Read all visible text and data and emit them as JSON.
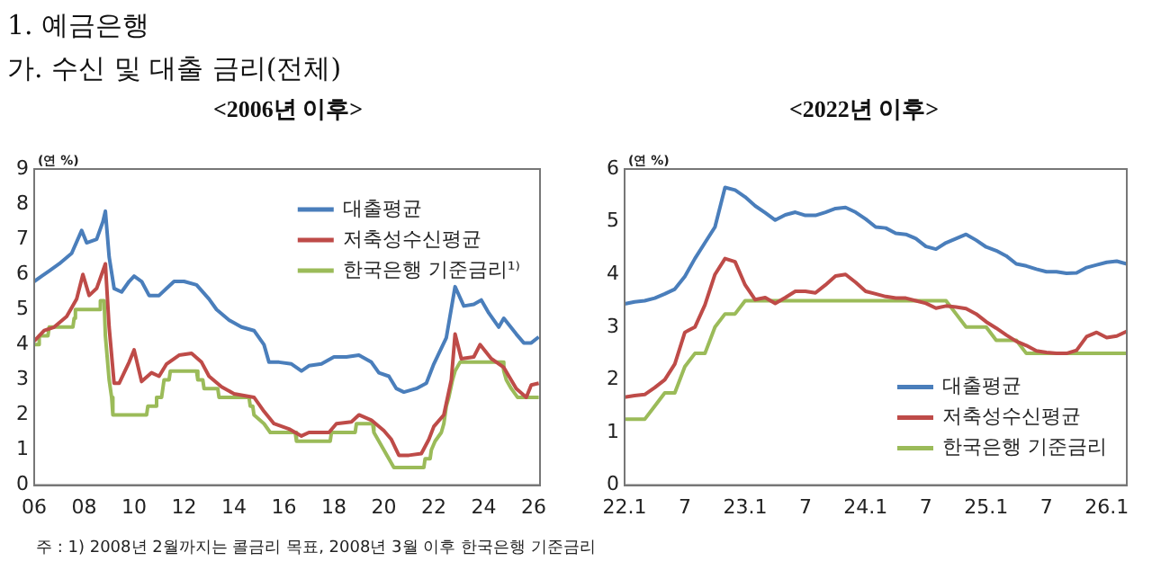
{
  "chart_data": [
    {
      "type": "line",
      "title": "<2006년 이후>",
      "ylabel": "(연 %)",
      "annotations": [
        "1. 예금은행",
        "가. 수신 및 대출 금리(전체)",
        "주 : 1) 2008년 2월까지는 콜금리 목표, 2008년 3월 이후 한국은행 기준금리"
      ],
      "legend": "top right",
      "xlim": [
        2006,
        2026.25
      ],
      "xticks": [
        {
          "value": 2006,
          "label": "06"
        },
        {
          "value": 2008,
          "label": "08"
        },
        {
          "value": 2010,
          "label": "10"
        },
        {
          "value": 2012,
          "label": "12"
        },
        {
          "value": 2014,
          "label": "14"
        },
        {
          "value": 2016,
          "label": "16"
        },
        {
          "value": 2018,
          "label": "18"
        },
        {
          "value": 2020,
          "label": "20"
        },
        {
          "value": 2022,
          "label": "22"
        },
        {
          "value": 2024,
          "label": "24"
        },
        {
          "value": 2026,
          "label": "26"
        }
      ],
      "ylim": [
        0,
        9
      ],
      "yticks": [
        0,
        1,
        2,
        3,
        4,
        5,
        6,
        7,
        8,
        9
      ],
      "series": [
        {
          "name": "대출평균",
          "color": "#4a7ebb",
          "x": [
            2006.0,
            2006.3,
            2006.6,
            2007.0,
            2007.5,
            2007.9,
            2008.1,
            2008.5,
            2008.75,
            2008.85,
            2009.0,
            2009.2,
            2009.5,
            2009.8,
            2010.0,
            2010.3,
            2010.6,
            2011.0,
            2011.3,
            2011.6,
            2012.0,
            2012.5,
            2013.0,
            2013.3,
            2013.8,
            2014.3,
            2014.8,
            2015.2,
            2015.4,
            2015.8,
            2016.3,
            2016.7,
            2017.0,
            2017.5,
            2018.0,
            2018.5,
            2019.0,
            2019.5,
            2019.8,
            2020.2,
            2020.5,
            2020.8,
            2021.3,
            2021.7,
            2022.0,
            2022.5,
            2022.85,
            2023.2,
            2023.6,
            2023.9,
            2024.2,
            2024.6,
            2024.8,
            2025.3,
            2025.6,
            2025.9,
            2026.2
          ],
          "values": [
            5.8,
            5.95,
            6.1,
            6.3,
            6.6,
            7.25,
            6.9,
            7.0,
            7.5,
            7.8,
            6.5,
            5.6,
            5.5,
            5.8,
            5.95,
            5.8,
            5.4,
            5.4,
            5.6,
            5.8,
            5.8,
            5.7,
            5.3,
            5.0,
            4.7,
            4.5,
            4.4,
            4.0,
            3.5,
            3.5,
            3.45,
            3.25,
            3.4,
            3.45,
            3.65,
            3.65,
            3.7,
            3.5,
            3.2,
            3.1,
            2.75,
            2.65,
            2.75,
            2.9,
            3.45,
            4.2,
            5.65,
            5.1,
            5.15,
            5.27,
            4.9,
            4.5,
            4.75,
            4.3,
            4.05,
            4.05,
            4.22
          ]
        },
        {
          "name": "저축성수신평균",
          "color": "#be4b48",
          "x": [
            2006.0,
            2006.4,
            2006.8,
            2007.3,
            2007.7,
            2007.95,
            2008.2,
            2008.5,
            2008.85,
            2009.0,
            2009.2,
            2009.4,
            2009.8,
            2010.0,
            2010.3,
            2010.7,
            2011.0,
            2011.3,
            2011.8,
            2012.3,
            2012.7,
            2013.0,
            2013.5,
            2014.0,
            2014.8,
            2015.2,
            2015.6,
            2016.2,
            2016.7,
            2017.0,
            2017.8,
            2018.1,
            2018.7,
            2019.0,
            2019.5,
            2020.0,
            2020.3,
            2020.6,
            2021.0,
            2021.5,
            2021.8,
            2022.0,
            2022.4,
            2022.7,
            2022.85,
            2023.1,
            2023.6,
            2023.85,
            2024.3,
            2024.8,
            2025.3,
            2025.7,
            2025.9,
            2026.2
          ],
          "values": [
            4.1,
            4.4,
            4.5,
            4.8,
            5.3,
            6.0,
            5.4,
            5.6,
            6.3,
            4.5,
            2.9,
            2.9,
            3.5,
            3.85,
            2.95,
            3.2,
            3.1,
            3.45,
            3.7,
            3.75,
            3.5,
            3.1,
            2.8,
            2.6,
            2.5,
            2.1,
            1.75,
            1.6,
            1.4,
            1.5,
            1.5,
            1.75,
            1.8,
            2.0,
            1.85,
            1.55,
            1.3,
            0.85,
            0.85,
            0.9,
            1.3,
            1.67,
            2.0,
            3.0,
            4.3,
            3.6,
            3.65,
            4.0,
            3.6,
            3.35,
            2.75,
            2.5,
            2.85,
            2.9
          ]
        },
        {
          "name": "한국은행 기준금리¹⁾",
          "color": "#9bbb59",
          "x": [
            2006.0,
            2006.15,
            2006.2,
            2006.55,
            2006.6,
            2007.55,
            2007.6,
            2007.65,
            2008.6,
            2008.65,
            2008.8,
            2008.85,
            2009.0,
            2009.1,
            2009.15,
            2010.5,
            2010.55,
            2010.85,
            2010.9,
            2011.1,
            2011.2,
            2011.4,
            2011.45,
            2012.5,
            2012.55,
            2012.75,
            2012.8,
            2013.35,
            2013.4,
            2014.6,
            2014.65,
            2014.75,
            2014.8,
            2015.2,
            2015.45,
            2016.45,
            2016.5,
            2017.85,
            2017.9,
            2018.85,
            2018.9,
            2019.55,
            2019.6,
            2019.8,
            2020.2,
            2020.4,
            2021.6,
            2021.65,
            2021.85,
            2021.9,
            2022.05,
            2022.3,
            2022.4,
            2022.5,
            2022.6,
            2022.75,
            2022.85,
            2023.05,
            2024.75,
            2024.8,
            2024.9,
            2025.1,
            2025.35,
            2026.2
          ],
          "values": [
            4.0,
            4.0,
            4.25,
            4.25,
            4.5,
            4.5,
            4.75,
            5.0,
            5.0,
            5.25,
            5.25,
            4.25,
            3.0,
            2.5,
            2.0,
            2.0,
            2.25,
            2.25,
            2.5,
            2.5,
            3.0,
            3.0,
            3.25,
            3.25,
            3.0,
            3.0,
            2.75,
            2.75,
            2.5,
            2.5,
            2.25,
            2.25,
            2.0,
            1.75,
            1.5,
            1.5,
            1.25,
            1.25,
            1.5,
            1.5,
            1.75,
            1.75,
            1.5,
            1.25,
            0.75,
            0.5,
            0.5,
            0.75,
            0.75,
            1.0,
            1.25,
            1.5,
            1.75,
            2.25,
            2.5,
            3.0,
            3.25,
            3.5,
            3.5,
            3.25,
            3.0,
            2.75,
            2.5,
            2.5
          ]
        }
      ]
    },
    {
      "type": "line",
      "title": "<2022년 이후>",
      "ylabel": "(연 %)",
      "legend": "bottom right",
      "xlim": [
        "2022-01",
        "2026-03"
      ],
      "xticks": [
        {
          "value": "2022-01",
          "label": "22.1"
        },
        {
          "value": "2022-07",
          "label": "7"
        },
        {
          "value": "2023-01",
          "label": "23.1"
        },
        {
          "value": "2023-07",
          "label": "7"
        },
        {
          "value": "2024-01",
          "label": "24.1"
        },
        {
          "value": "2024-07",
          "label": "7"
        },
        {
          "value": "2025-01",
          "label": "25.1"
        },
        {
          "value": "2025-07",
          "label": "7"
        },
        {
          "value": "2026-01",
          "label": "26.1"
        }
      ],
      "ylim": [
        0,
        6
      ],
      "yticks": [
        0,
        1,
        2,
        3,
        4,
        5,
        6
      ],
      "x": [
        "2022-01",
        "2022-02",
        "2022-03",
        "2022-04",
        "2022-05",
        "2022-06",
        "2022-07",
        "2022-08",
        "2022-09",
        "2022-10",
        "2022-11",
        "2022-12",
        "2023-01",
        "2023-02",
        "2023-03",
        "2023-04",
        "2023-05",
        "2023-06",
        "2023-07",
        "2023-08",
        "2023-09",
        "2023-10",
        "2023-11",
        "2023-12",
        "2024-01",
        "2024-02",
        "2024-03",
        "2024-04",
        "2024-05",
        "2024-06",
        "2024-07",
        "2024-08",
        "2024-09",
        "2024-10",
        "2024-11",
        "2024-12",
        "2025-01",
        "2025-02",
        "2025-03",
        "2025-04",
        "2025-05",
        "2025-06",
        "2025-07",
        "2025-08",
        "2025-09",
        "2025-10",
        "2025-11",
        "2025-12",
        "2026-01",
        "2026-02",
        "2026-03"
      ],
      "series": [
        {
          "name": "대출평균",
          "color": "#4a7ebb",
          "values": [
            3.44,
            3.48,
            3.5,
            3.55,
            3.63,
            3.72,
            3.96,
            4.3,
            4.6,
            4.9,
            5.65,
            5.6,
            5.47,
            5.3,
            5.17,
            5.03,
            5.13,
            5.18,
            5.12,
            5.12,
            5.18,
            5.25,
            5.27,
            5.18,
            5.05,
            4.9,
            4.88,
            4.78,
            4.76,
            4.68,
            4.53,
            4.48,
            4.6,
            4.68,
            4.76,
            4.65,
            4.52,
            4.45,
            4.35,
            4.2,
            4.16,
            4.1,
            4.05,
            4.05,
            4.02,
            4.03,
            4.13,
            4.18,
            4.23,
            4.25,
            4.2
          ]
        },
        {
          "name": "저축성수신평균",
          "color": "#be4b48",
          "values": [
            1.67,
            1.7,
            1.72,
            1.85,
            2.0,
            2.3,
            2.9,
            3.0,
            3.42,
            4.0,
            4.3,
            4.24,
            3.8,
            3.52,
            3.56,
            3.45,
            3.56,
            3.68,
            3.68,
            3.65,
            3.8,
            3.97,
            4.0,
            3.85,
            3.68,
            3.63,
            3.58,
            3.55,
            3.55,
            3.5,
            3.45,
            3.36,
            3.4,
            3.38,
            3.35,
            3.25,
            3.1,
            2.98,
            2.85,
            2.73,
            2.65,
            2.55,
            2.52,
            2.5,
            2.5,
            2.56,
            2.82,
            2.9,
            2.8,
            2.83,
            2.92
          ]
        },
        {
          "name": "한국은행 기준금리",
          "color": "#9bbb59",
          "values": [
            1.25,
            1.25,
            1.25,
            1.5,
            1.75,
            1.75,
            2.25,
            2.5,
            2.5,
            3.0,
            3.25,
            3.25,
            3.5,
            3.5,
            3.5,
            3.5,
            3.5,
            3.5,
            3.5,
            3.5,
            3.5,
            3.5,
            3.5,
            3.5,
            3.5,
            3.5,
            3.5,
            3.5,
            3.5,
            3.5,
            3.5,
            3.5,
            3.5,
            3.25,
            3.0,
            3.0,
            3.0,
            2.75,
            2.75,
            2.75,
            2.5,
            2.5,
            2.5,
            2.5,
            2.5,
            2.5,
            2.5,
            2.5,
            2.5,
            2.5,
            2.5
          ]
        }
      ]
    }
  ]
}
